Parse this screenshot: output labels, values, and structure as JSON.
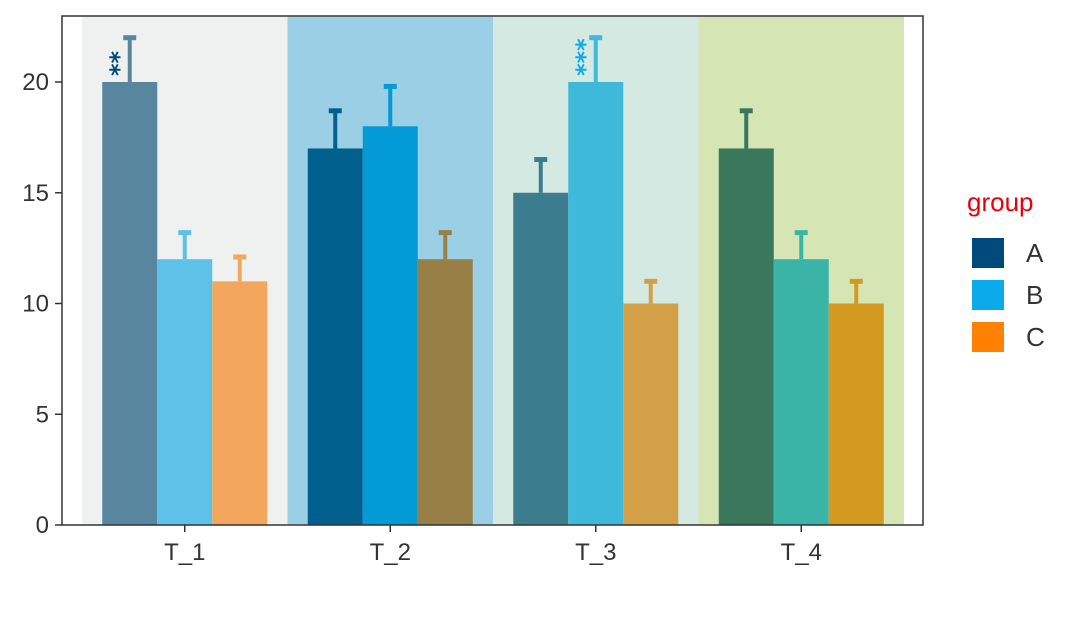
{
  "chart_data": {
    "type": "bar",
    "categories": [
      "T_1",
      "T_2",
      "T_3",
      "T_4"
    ],
    "series": [
      {
        "name": "A",
        "values": [
          20,
          17,
          15,
          17
        ],
        "errors": [
          2,
          1.7,
          1.5,
          1.7
        ]
      },
      {
        "name": "B",
        "values": [
          12,
          18,
          20,
          12
        ],
        "errors": [
          1.2,
          1.8,
          2,
          1.2
        ]
      },
      {
        "name": "C",
        "values": [
          11,
          12,
          10,
          10
        ],
        "errors": [
          1.1,
          1.2,
          1,
          1
        ]
      }
    ],
    "ylim": [
      0,
      23
    ],
    "yticks": [
      0,
      5,
      10,
      15,
      20
    ],
    "xlabel": "",
    "ylabel": "",
    "grid": false,
    "legend": {
      "title": "group",
      "position": "right",
      "title_color": "#e8000b",
      "entries": [
        {
          "label": "A",
          "color": "#004a7b"
        },
        {
          "label": "B",
          "color": "#0aaaeb"
        },
        {
          "label": "C",
          "color": "#fe8102"
        }
      ]
    },
    "panel_backgrounds": [
      "#eff1f0",
      "#9bcfe5",
      "#d5e9e3",
      "#d5e6b4"
    ],
    "bar_colors": [
      [
        "#58869f",
        "#5ec1e8",
        "#f2a75c"
      ],
      [
        "#02608f",
        "#029bd6",
        "#987f46"
      ],
      [
        "#3c7c8f",
        "#3eb9d9",
        "#d4a047"
      ],
      [
        "#3a785e",
        "#3bb4a8",
        "#d4991f"
      ]
    ],
    "annotations": [
      {
        "category": "T_1",
        "series": "A",
        "text": "**",
        "color": "#004a7b"
      },
      {
        "category": "T_3",
        "series": "B",
        "text": "***",
        "color": "#0aaaeb"
      }
    ]
  }
}
